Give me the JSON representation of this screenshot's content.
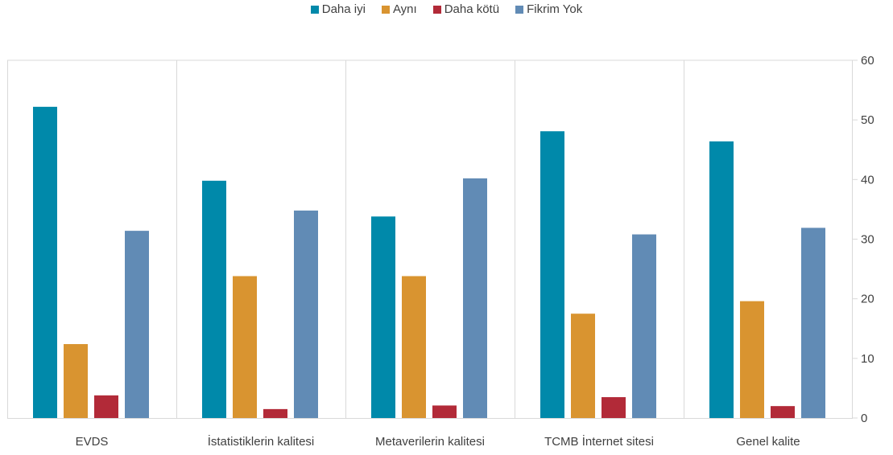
{
  "chart_data": {
    "type": "bar",
    "categories": [
      "EVDS",
      "İstatistiklerin kalitesi",
      "Metaverilerin kalitesi",
      "TCMB İnternet sitesi",
      "Genel kalite"
    ],
    "series": [
      {
        "name": "Daha iyi",
        "color": "#0089AA",
        "values": [
          52.2,
          39.8,
          33.8,
          48.1,
          46.4
        ]
      },
      {
        "name": "Aynı",
        "color": "#D99430",
        "values": [
          12.4,
          23.8,
          23.8,
          17.5,
          19.6
        ]
      },
      {
        "name": "Daha kötü",
        "color": "#B22A38",
        "values": [
          3.8,
          1.5,
          2.1,
          3.5,
          2.0
        ]
      },
      {
        "name": "Fikrim Yok",
        "color": "#618BB5",
        "values": [
          31.4,
          34.8,
          40.2,
          30.8,
          31.9
        ]
      }
    ],
    "yticks": [
      0,
      10,
      20,
      30,
      40,
      50,
      60
    ],
    "ylim": [
      0,
      60
    ],
    "y_axis_side": "right",
    "legend_position": "top-center",
    "grid": "vertical category separators"
  }
}
